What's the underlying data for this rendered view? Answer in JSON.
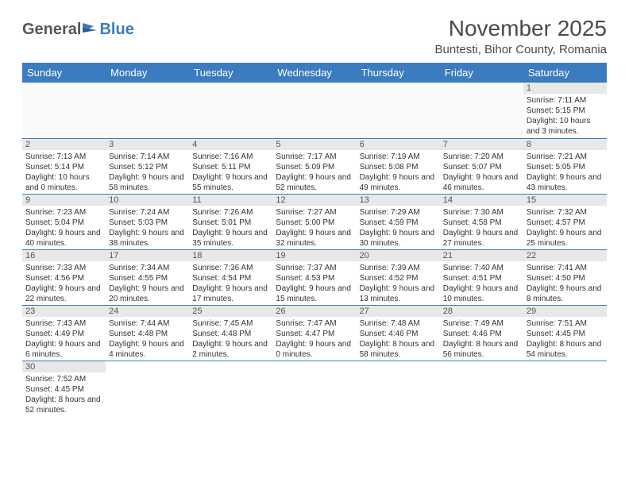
{
  "logo": {
    "general": "General",
    "blue": "Blue"
  },
  "title": "November 2025",
  "location": "Buntesti, Bihor County, Romania",
  "day_headers": [
    "Sunday",
    "Monday",
    "Tuesday",
    "Wednesday",
    "Thursday",
    "Friday",
    "Saturday"
  ],
  "colors": {
    "header_bg": "#3a7cbf",
    "header_text": "#ffffff",
    "day_num_bg": "#e8e8e8",
    "border": "#3a7cbf",
    "text": "#333333"
  },
  "weeks": [
    [
      null,
      null,
      null,
      null,
      null,
      null,
      {
        "n": "1",
        "sunrise": "Sunrise: 7:11 AM",
        "sunset": "Sunset: 5:15 PM",
        "daylight": "Daylight: 10 hours and 3 minutes."
      }
    ],
    [
      {
        "n": "2",
        "sunrise": "Sunrise: 7:13 AM",
        "sunset": "Sunset: 5:14 PM",
        "daylight": "Daylight: 10 hours and 0 minutes."
      },
      {
        "n": "3",
        "sunrise": "Sunrise: 7:14 AM",
        "sunset": "Sunset: 5:12 PM",
        "daylight": "Daylight: 9 hours and 58 minutes."
      },
      {
        "n": "4",
        "sunrise": "Sunrise: 7:16 AM",
        "sunset": "Sunset: 5:11 PM",
        "daylight": "Daylight: 9 hours and 55 minutes."
      },
      {
        "n": "5",
        "sunrise": "Sunrise: 7:17 AM",
        "sunset": "Sunset: 5:09 PM",
        "daylight": "Daylight: 9 hours and 52 minutes."
      },
      {
        "n": "6",
        "sunrise": "Sunrise: 7:19 AM",
        "sunset": "Sunset: 5:08 PM",
        "daylight": "Daylight: 9 hours and 49 minutes."
      },
      {
        "n": "7",
        "sunrise": "Sunrise: 7:20 AM",
        "sunset": "Sunset: 5:07 PM",
        "daylight": "Daylight: 9 hours and 46 minutes."
      },
      {
        "n": "8",
        "sunrise": "Sunrise: 7:21 AM",
        "sunset": "Sunset: 5:05 PM",
        "daylight": "Daylight: 9 hours and 43 minutes."
      }
    ],
    [
      {
        "n": "9",
        "sunrise": "Sunrise: 7:23 AM",
        "sunset": "Sunset: 5:04 PM",
        "daylight": "Daylight: 9 hours and 40 minutes."
      },
      {
        "n": "10",
        "sunrise": "Sunrise: 7:24 AM",
        "sunset": "Sunset: 5:03 PM",
        "daylight": "Daylight: 9 hours and 38 minutes."
      },
      {
        "n": "11",
        "sunrise": "Sunrise: 7:26 AM",
        "sunset": "Sunset: 5:01 PM",
        "daylight": "Daylight: 9 hours and 35 minutes."
      },
      {
        "n": "12",
        "sunrise": "Sunrise: 7:27 AM",
        "sunset": "Sunset: 5:00 PM",
        "daylight": "Daylight: 9 hours and 32 minutes."
      },
      {
        "n": "13",
        "sunrise": "Sunrise: 7:29 AM",
        "sunset": "Sunset: 4:59 PM",
        "daylight": "Daylight: 9 hours and 30 minutes."
      },
      {
        "n": "14",
        "sunrise": "Sunrise: 7:30 AM",
        "sunset": "Sunset: 4:58 PM",
        "daylight": "Daylight: 9 hours and 27 minutes."
      },
      {
        "n": "15",
        "sunrise": "Sunrise: 7:32 AM",
        "sunset": "Sunset: 4:57 PM",
        "daylight": "Daylight: 9 hours and 25 minutes."
      }
    ],
    [
      {
        "n": "16",
        "sunrise": "Sunrise: 7:33 AM",
        "sunset": "Sunset: 4:56 PM",
        "daylight": "Daylight: 9 hours and 22 minutes."
      },
      {
        "n": "17",
        "sunrise": "Sunrise: 7:34 AM",
        "sunset": "Sunset: 4:55 PM",
        "daylight": "Daylight: 9 hours and 20 minutes."
      },
      {
        "n": "18",
        "sunrise": "Sunrise: 7:36 AM",
        "sunset": "Sunset: 4:54 PM",
        "daylight": "Daylight: 9 hours and 17 minutes."
      },
      {
        "n": "19",
        "sunrise": "Sunrise: 7:37 AM",
        "sunset": "Sunset: 4:53 PM",
        "daylight": "Daylight: 9 hours and 15 minutes."
      },
      {
        "n": "20",
        "sunrise": "Sunrise: 7:39 AM",
        "sunset": "Sunset: 4:52 PM",
        "daylight": "Daylight: 9 hours and 13 minutes."
      },
      {
        "n": "21",
        "sunrise": "Sunrise: 7:40 AM",
        "sunset": "Sunset: 4:51 PM",
        "daylight": "Daylight: 9 hours and 10 minutes."
      },
      {
        "n": "22",
        "sunrise": "Sunrise: 7:41 AM",
        "sunset": "Sunset: 4:50 PM",
        "daylight": "Daylight: 9 hours and 8 minutes."
      }
    ],
    [
      {
        "n": "23",
        "sunrise": "Sunrise: 7:43 AM",
        "sunset": "Sunset: 4:49 PM",
        "daylight": "Daylight: 9 hours and 6 minutes."
      },
      {
        "n": "24",
        "sunrise": "Sunrise: 7:44 AM",
        "sunset": "Sunset: 4:48 PM",
        "daylight": "Daylight: 9 hours and 4 minutes."
      },
      {
        "n": "25",
        "sunrise": "Sunrise: 7:45 AM",
        "sunset": "Sunset: 4:48 PM",
        "daylight": "Daylight: 9 hours and 2 minutes."
      },
      {
        "n": "26",
        "sunrise": "Sunrise: 7:47 AM",
        "sunset": "Sunset: 4:47 PM",
        "daylight": "Daylight: 9 hours and 0 minutes."
      },
      {
        "n": "27",
        "sunrise": "Sunrise: 7:48 AM",
        "sunset": "Sunset: 4:46 PM",
        "daylight": "Daylight: 8 hours and 58 minutes."
      },
      {
        "n": "28",
        "sunrise": "Sunrise: 7:49 AM",
        "sunset": "Sunset: 4:46 PM",
        "daylight": "Daylight: 8 hours and 56 minutes."
      },
      {
        "n": "29",
        "sunrise": "Sunrise: 7:51 AM",
        "sunset": "Sunset: 4:45 PM",
        "daylight": "Daylight: 8 hours and 54 minutes."
      }
    ],
    [
      {
        "n": "30",
        "sunrise": "Sunrise: 7:52 AM",
        "sunset": "Sunset: 4:45 PM",
        "daylight": "Daylight: 8 hours and 52 minutes."
      },
      null,
      null,
      null,
      null,
      null,
      null
    ]
  ]
}
